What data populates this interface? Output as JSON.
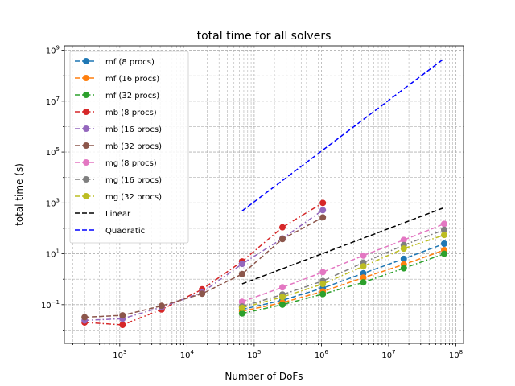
{
  "chart_data": {
    "type": "line",
    "title": "total time for all solvers",
    "xlabel": "Number of DoFs",
    "ylabel": "total time (s)",
    "xscale": "log",
    "yscale": "log",
    "xlim": [
      150,
      130000000
    ],
    "ylim": [
      0.003,
      1500000000
    ],
    "grid": "major and minor, dashed",
    "legend_position": "top-left",
    "x_ticks": [
      {
        "value": 1000,
        "base": "10",
        "exp": "3"
      },
      {
        "value": 10000,
        "base": "10",
        "exp": "4"
      },
      {
        "value": 100000,
        "base": "10",
        "exp": "5"
      },
      {
        "value": 1000000,
        "base": "10",
        "exp": "6"
      },
      {
        "value": 10000000,
        "base": "10",
        "exp": "7"
      },
      {
        "value": 100000000,
        "base": "10",
        "exp": "8"
      }
    ],
    "y_ticks": [
      {
        "value": 0.1,
        "base": "10",
        "exp": "−1"
      },
      {
        "value": 10,
        "base": "10",
        "exp": "1"
      },
      {
        "value": 1000,
        "base": "10",
        "exp": "3"
      },
      {
        "value": 100000,
        "base": "10",
        "exp": "5"
      },
      {
        "value": 10000000,
        "base": "10",
        "exp": "7"
      },
      {
        "value": 1000000000,
        "base": "10",
        "exp": "9"
      }
    ],
    "series": [
      {
        "name": "mf (8 procs)",
        "color": "#1f77b4",
        "dash": "6,3",
        "marker": true,
        "x": [
          66000,
          263000,
          1050000,
          4200000,
          16800000,
          67000000
        ],
        "y": [
          0.065,
          0.15,
          0.45,
          1.7,
          6.3,
          25
        ]
      },
      {
        "name": "mf (16 procs)",
        "color": "#ff7f0e",
        "dash": "6,3",
        "marker": true,
        "x": [
          66000,
          263000,
          1050000,
          4200000,
          16800000,
          67000000
        ],
        "y": [
          0.055,
          0.12,
          0.33,
          1.15,
          3.8,
          14
        ]
      },
      {
        "name": "mf (32 procs)",
        "color": "#2ca02c",
        "dash": "6,3,1.5,3",
        "marker": true,
        "x": [
          66000,
          263000,
          1050000,
          4200000,
          16800000,
          67000000
        ],
        "y": [
          0.045,
          0.1,
          0.26,
          0.75,
          2.7,
          10
        ]
      },
      {
        "name": "mb (8 procs)",
        "color": "#d62728",
        "dash": "6,3,1.5,3",
        "marker": true,
        "x": [
          300,
          1100,
          4200,
          16800,
          66000,
          263000,
          1050000
        ],
        "y": [
          0.02,
          0.016,
          0.065,
          0.4,
          5,
          110,
          1000
        ]
      },
      {
        "name": "mb (16 procs)",
        "color": "#9467bd",
        "dash": "6,3,1.5,3",
        "marker": true,
        "x": [
          300,
          1100,
          4200,
          16800,
          66000,
          263000,
          1050000
        ],
        "y": [
          0.024,
          0.028,
          0.08,
          0.3,
          4,
          40,
          520
        ]
      },
      {
        "name": "mb (32 procs)",
        "color": "#8c564b",
        "dash": "6,3",
        "marker": true,
        "x": [
          300,
          1100,
          4200,
          16800,
          66000,
          263000,
          1050000
        ],
        "y": [
          0.032,
          0.038,
          0.09,
          0.27,
          1.6,
          38,
          270
        ]
      },
      {
        "name": "mg (8 procs)",
        "color": "#e377c2",
        "dash": "6,3",
        "marker": true,
        "x": [
          66000,
          263000,
          1050000,
          4200000,
          16800000,
          67000000
        ],
        "y": [
          0.13,
          0.48,
          1.9,
          8.5,
          35,
          150
        ]
      },
      {
        "name": "mg (16 procs)",
        "color": "#7f7f7f",
        "dash": "6,3,1.5,3",
        "marker": true,
        "x": [
          66000,
          263000,
          1050000,
          4200000,
          16800000,
          67000000
        ],
        "y": [
          0.085,
          0.25,
          0.85,
          4.5,
          22,
          88
        ]
      },
      {
        "name": "mg (32 procs)",
        "color": "#bcbd22",
        "dash": "6,3,1.5,3",
        "marker": true,
        "x": [
          66000,
          263000,
          1050000,
          4200000,
          16800000,
          67000000
        ],
        "y": [
          0.075,
          0.2,
          0.65,
          3.2,
          16,
          55
        ]
      },
      {
        "name": "Linear",
        "color": "#000000",
        "dash": "6,3",
        "marker": false,
        "x": [
          66000,
          67000000
        ],
        "y": [
          0.65,
          650
        ]
      },
      {
        "name": "Quadratic",
        "color": "#0000ff",
        "dash": "6,3",
        "marker": false,
        "x": [
          66000,
          67000000
        ],
        "y": [
          480,
          480000000
        ]
      }
    ]
  }
}
